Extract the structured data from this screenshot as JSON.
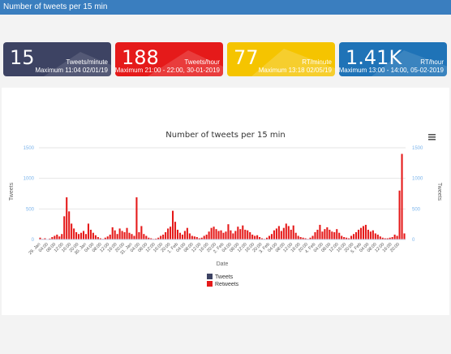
{
  "header": {
    "title": "Number of tweets per 15 min"
  },
  "cards": [
    {
      "value": "15",
      "unit": "Tweets/minute",
      "maximum": "Maximum 11:04 02/01/19",
      "color": "#3d4363"
    },
    {
      "value": "188",
      "unit": "Tweets/hour",
      "maximum": "Maximum 21:00 - 22:00, 30-01-2019",
      "color": "#e51a1a"
    },
    {
      "value": "77",
      "unit": "RT/minute",
      "maximum": "Maximum 13:18 02/05/19",
      "color": "#f5c400"
    },
    {
      "value": "1.41K",
      "unit": "RT/hour",
      "maximum": "Maximum 13:00 - 14:00, 05-02-2019",
      "color": "#1f73b7"
    }
  ],
  "menu_icon": "hamburger-menu-icon",
  "chart_data": {
    "type": "bar",
    "title": "Number of tweets per 15 min",
    "xlabel": "Date",
    "ylabel_left": "Tweets",
    "ylabel_right": "Tweets",
    "ylim": [
      0,
      1500
    ],
    "yticks": [
      "0",
      "500",
      "1000",
      "1500"
    ],
    "grid": true,
    "legend": "bottom",
    "xticks": [
      "29. Jan",
      "04:00",
      "08:00",
      "12:00",
      "16:00",
      "20:00",
      "30. Jan",
      "04:00",
      "08:00",
      "12:00",
      "16:00",
      "20:00",
      "31. Jan",
      "04:00",
      "08:00",
      "12:00",
      "16:00",
      "20:00",
      "1. Feb",
      "04:00",
      "08:00",
      "12:00",
      "16:00",
      "20:00",
      "2. Feb",
      "04:00",
      "08:00",
      "12:00",
      "16:00",
      "20:00",
      "3. Feb",
      "04:00",
      "08:00",
      "12:00",
      "16:00",
      "20:00",
      "4. Feb",
      "04:00",
      "08:00",
      "12:00",
      "16:00",
      "20:00",
      "5. Feb",
      "04:00",
      "08:00",
      "12:00",
      "16:00",
      "20:00"
    ],
    "series": [
      {
        "name": "Tweets",
        "color": "#3d4363",
        "values": []
      },
      {
        "name": "Retweets",
        "color": "#e51a1a",
        "values": [
          30,
          10,
          20,
          5,
          15,
          40,
          60,
          80,
          50,
          90,
          380,
          690,
          460,
          260,
          180,
          120,
          90,
          110,
          140,
          90,
          260,
          160,
          110,
          70,
          40,
          20,
          10,
          30,
          50,
          80,
          200,
          150,
          90,
          180,
          140,
          120,
          190,
          110,
          90,
          60,
          690,
          120,
          220,
          90,
          60,
          30,
          20,
          10,
          15,
          30,
          60,
          80,
          120,
          180,
          210,
          470,
          290,
          160,
          110,
          80,
          140,
          190,
          100,
          60,
          50,
          40,
          20,
          30,
          60,
          80,
          130,
          190,
          210,
          170,
          140,
          150,
          110,
          130,
          250,
          150,
          100,
          140,
          210,
          170,
          230,
          160,
          150,
          120,
          80,
          60,
          70,
          40,
          20,
          10,
          30,
          60,
          90,
          150,
          180,
          220,
          140,
          190,
          260,
          220,
          160,
          230,
          110,
          60,
          40,
          30,
          20,
          10,
          30,
          60,
          120,
          160,
          240,
          130,
          170,
          200,
          160,
          130,
          120,
          170,
          110,
          60,
          40,
          30,
          20,
          60,
          90,
          120,
          160,
          190,
          220,
          240,
          160,
          130,
          150,
          100,
          80,
          50,
          30,
          20,
          20,
          30,
          40,
          80,
          60,
          800,
          1400,
          100
        ]
      }
    ]
  }
}
